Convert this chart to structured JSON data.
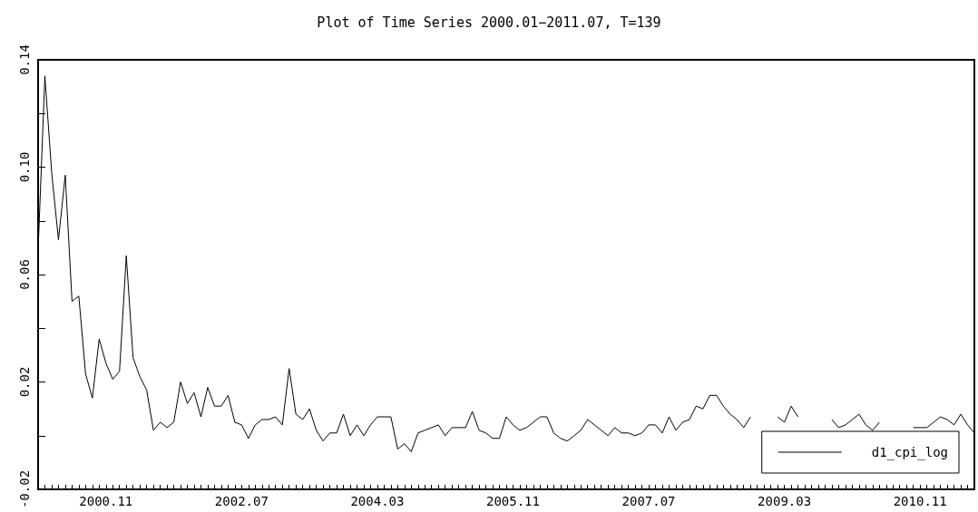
{
  "chart_data": {
    "type": "line",
    "title": "Plot of Time Series 2000.01−2011.07, T=139",
    "categories": [
      null,
      null,
      null,
      null,
      null,
      null,
      null,
      null,
      null,
      null,
      "2000.11",
      null,
      null,
      null,
      null,
      null,
      null,
      null,
      null,
      null,
      null,
      null,
      null,
      null,
      null,
      null,
      null,
      null,
      null,
      null,
      "2002.07",
      null,
      null,
      null,
      null,
      null,
      null,
      null,
      null,
      null,
      null,
      null,
      null,
      null,
      null,
      null,
      null,
      null,
      null,
      null,
      "2004.03",
      null,
      null,
      null,
      null,
      null,
      null,
      null,
      null,
      null,
      null,
      null,
      null,
      null,
      null,
      null,
      null,
      null,
      null,
      null,
      "2005.11",
      null,
      null,
      null,
      null,
      null,
      null,
      null,
      null,
      null,
      null,
      null,
      null,
      null,
      null,
      null,
      null,
      null,
      null,
      null,
      "2007.07",
      null,
      null,
      null,
      null,
      null,
      null,
      null,
      null,
      null,
      null,
      null,
      null,
      null,
      null,
      null,
      null,
      null,
      null,
      null,
      "2009.03",
      null,
      null,
      null,
      null,
      null,
      null,
      null,
      null,
      null,
      null,
      null,
      null,
      null,
      null,
      null,
      null,
      null,
      null,
      null,
      "2010.11",
      null,
      null,
      null,
      null,
      null,
      null,
      null,
      null
    ],
    "series": [
      {
        "name": "d1_cpi_log",
        "color": "#000000",
        "values": [
          0.069,
          0.134,
          0.098,
          0.073,
          0.097,
          0.05,
          0.052,
          0.023,
          0.014,
          0.036,
          0.027,
          0.021,
          0.024,
          0.067,
          0.029,
          0.022,
          0.017,
          0.002,
          0.005,
          0.003,
          0.005,
          0.02,
          0.012,
          0.016,
          0.007,
          0.018,
          0.011,
          0.011,
          0.015,
          0.005,
          0.004,
          -0.001,
          0.004,
          0.006,
          0.006,
          0.007,
          0.004,
          0.025,
          0.008,
          0.006,
          0.01,
          0.002,
          -0.002,
          0.001,
          0.001,
          0.008,
          0.0,
          0.004,
          0.0,
          0.004,
          0.007,
          0.007,
          0.007,
          -0.005,
          -0.003,
          -0.006,
          0.001,
          0.002,
          0.003,
          0.004,
          0.0,
          0.003,
          0.003,
          0.003,
          0.009,
          0.002,
          0.001,
          -0.001,
          -0.001,
          0.007,
          0.004,
          0.002,
          0.003,
          0.005,
          0.007,
          0.007,
          0.001,
          -0.001,
          -0.002,
          0.0,
          0.002,
          0.006,
          0.004,
          0.002,
          0.0,
          0.003,
          0.001,
          0.001,
          0.0,
          0.001,
          0.004,
          0.004,
          0.001,
          0.007,
          0.002,
          0.005,
          0.006,
          0.011,
          0.01,
          0.015,
          0.015,
          0.011,
          0.008,
          0.006,
          0.003,
          0.007,
          null,
          null,
          null,
          0.007,
          0.005,
          0.011,
          0.007,
          null,
          null,
          null,
          null,
          0.006,
          0.003,
          0.004,
          0.006,
          0.008,
          0.004,
          0.002,
          0.005,
          null,
          null,
          null,
          null,
          0.003,
          0.003,
          0.003,
          0.005,
          0.007,
          0.006,
          0.004,
          0.008,
          0.004,
          0.001
        ]
      }
    ],
    "ylim": [
      -0.02,
      0.14
    ],
    "yticks": [
      {
        "value": -0.02,
        "label": "-0.02"
      },
      {
        "value": 0,
        "label": null
      },
      {
        "value": 0.02,
        "label": "0.02"
      },
      {
        "value": 0.04,
        "label": null
      },
      {
        "value": 0.06,
        "label": "0.06"
      },
      {
        "value": 0.08,
        "label": null
      },
      {
        "value": 0.1,
        "label": "0.10"
      },
      {
        "value": 0.12,
        "label": null
      },
      {
        "value": 0.14,
        "label": "0.14"
      }
    ],
    "legend": "bottom right",
    "grid": false,
    "marker": "none",
    "line_style": "solid"
  }
}
